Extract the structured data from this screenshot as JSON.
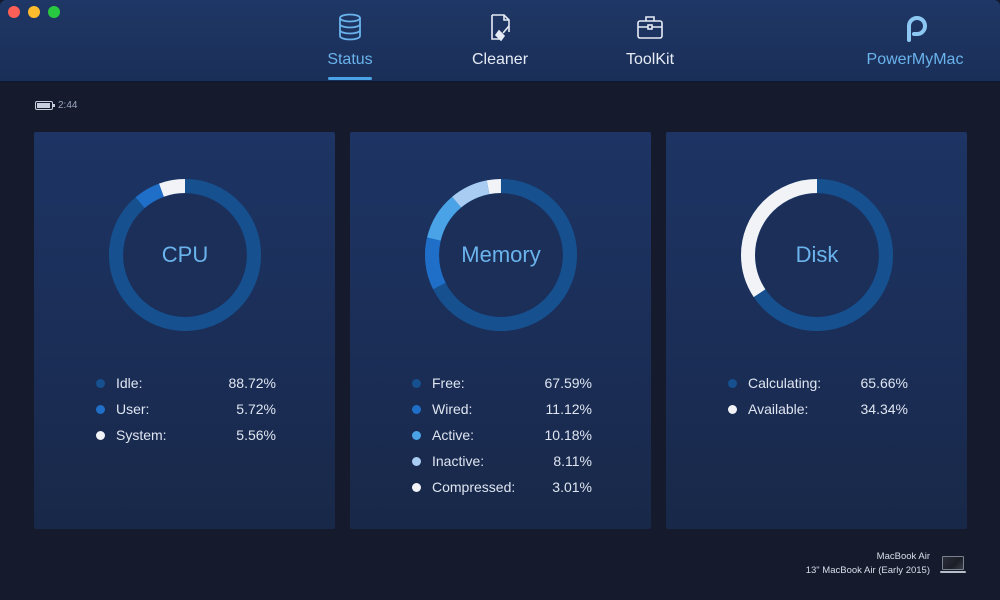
{
  "app": {
    "brand_label": "PowerMyMac"
  },
  "nav": {
    "tabs": [
      {
        "label": "Status",
        "icon": "database-icon",
        "active": true
      },
      {
        "label": "Cleaner",
        "icon": "broom-document-icon",
        "active": false
      },
      {
        "label": "ToolKit",
        "icon": "toolbox-icon",
        "active": false
      }
    ]
  },
  "battery": {
    "time": "2:44"
  },
  "colors": {
    "accent": "#6ab3ec",
    "ring_dark": "#16508f",
    "ring_mid": "#1f6fc8",
    "ring_light": "#4aa3e6",
    "ring_pale": "#a9cdf2",
    "ring_white": "#f1f3f7"
  },
  "cards": {
    "cpu": {
      "title": "CPU",
      "stats": [
        {
          "name": "Idle:",
          "value": "88.72%",
          "fraction": 0.8872,
          "color": "#16508f"
        },
        {
          "name": "User:",
          "value": "5.72%",
          "fraction": 0.0572,
          "color": "#1f6fc8"
        },
        {
          "name": "System:",
          "value": "5.56%",
          "fraction": 0.0556,
          "color": "#f1f3f7"
        }
      ]
    },
    "memory": {
      "title": "Memory",
      "stats": [
        {
          "name": "Free:",
          "value": "67.59%",
          "fraction": 0.6759,
          "color": "#16508f"
        },
        {
          "name": "Wired:",
          "value": "11.12%",
          "fraction": 0.1112,
          "color": "#1f6fc8"
        },
        {
          "name": "Active:",
          "value": "10.18%",
          "fraction": 0.1018,
          "color": "#4aa3e6"
        },
        {
          "name": "Inactive:",
          "value": "8.11%",
          "fraction": 0.0811,
          "color": "#a9cdf2"
        },
        {
          "name": "Compressed:",
          "value": "3.01%",
          "fraction": 0.0301,
          "color": "#f1f3f7"
        }
      ]
    },
    "disk": {
      "title": "Disk",
      "stats": [
        {
          "name": "Calculating:",
          "value": "65.66%",
          "fraction": 0.6566,
          "color": "#16508f"
        },
        {
          "name": "Available:",
          "value": "34.34%",
          "fraction": 0.3434,
          "color": "#f1f3f7"
        }
      ]
    }
  },
  "device": {
    "name": "MacBook Air",
    "model": "13\" MacBook Air (Early 2015)"
  }
}
